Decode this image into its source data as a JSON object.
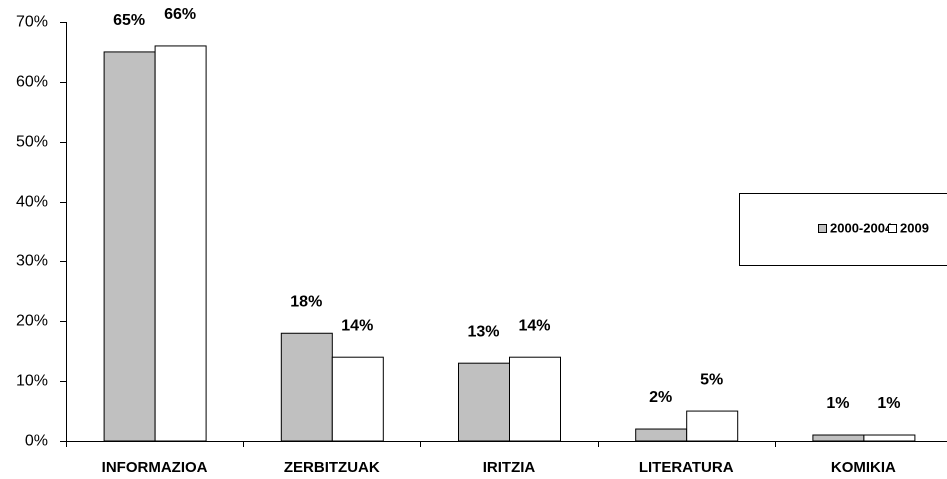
{
  "chart_data": {
    "type": "bar",
    "categories": [
      "INFORMAZIOA",
      "ZERBITZUAK",
      "IRITZIA",
      "LITERATURA",
      "KOMIKIA"
    ],
    "series": [
      {
        "name": "2000-2004",
        "color": "#c0c0c0",
        "values": [
          65,
          18,
          13,
          2,
          1
        ],
        "value_labels": [
          "65%",
          "18%",
          "13%",
          "2%",
          "1%"
        ]
      },
      {
        "name": "2009",
        "color": "#ffffff",
        "values": [
          66,
          14,
          14,
          5,
          1
        ],
        "value_labels": [
          "66%",
          "14%",
          "14%",
          "5%",
          "1%"
        ]
      }
    ],
    "ylim": [
      0,
      70
    ],
    "yticks": [
      {
        "value": 0,
        "label": "0%"
      },
      {
        "value": 10,
        "label": "10%"
      },
      {
        "value": 20,
        "label": "20%"
      },
      {
        "value": 30,
        "label": "30%"
      },
      {
        "value": 40,
        "label": "40%"
      },
      {
        "value": 50,
        "label": "50%"
      },
      {
        "value": 60,
        "label": "60%"
      },
      {
        "value": 70,
        "label": "70%"
      }
    ],
    "legend": "right",
    "grid": false
  }
}
